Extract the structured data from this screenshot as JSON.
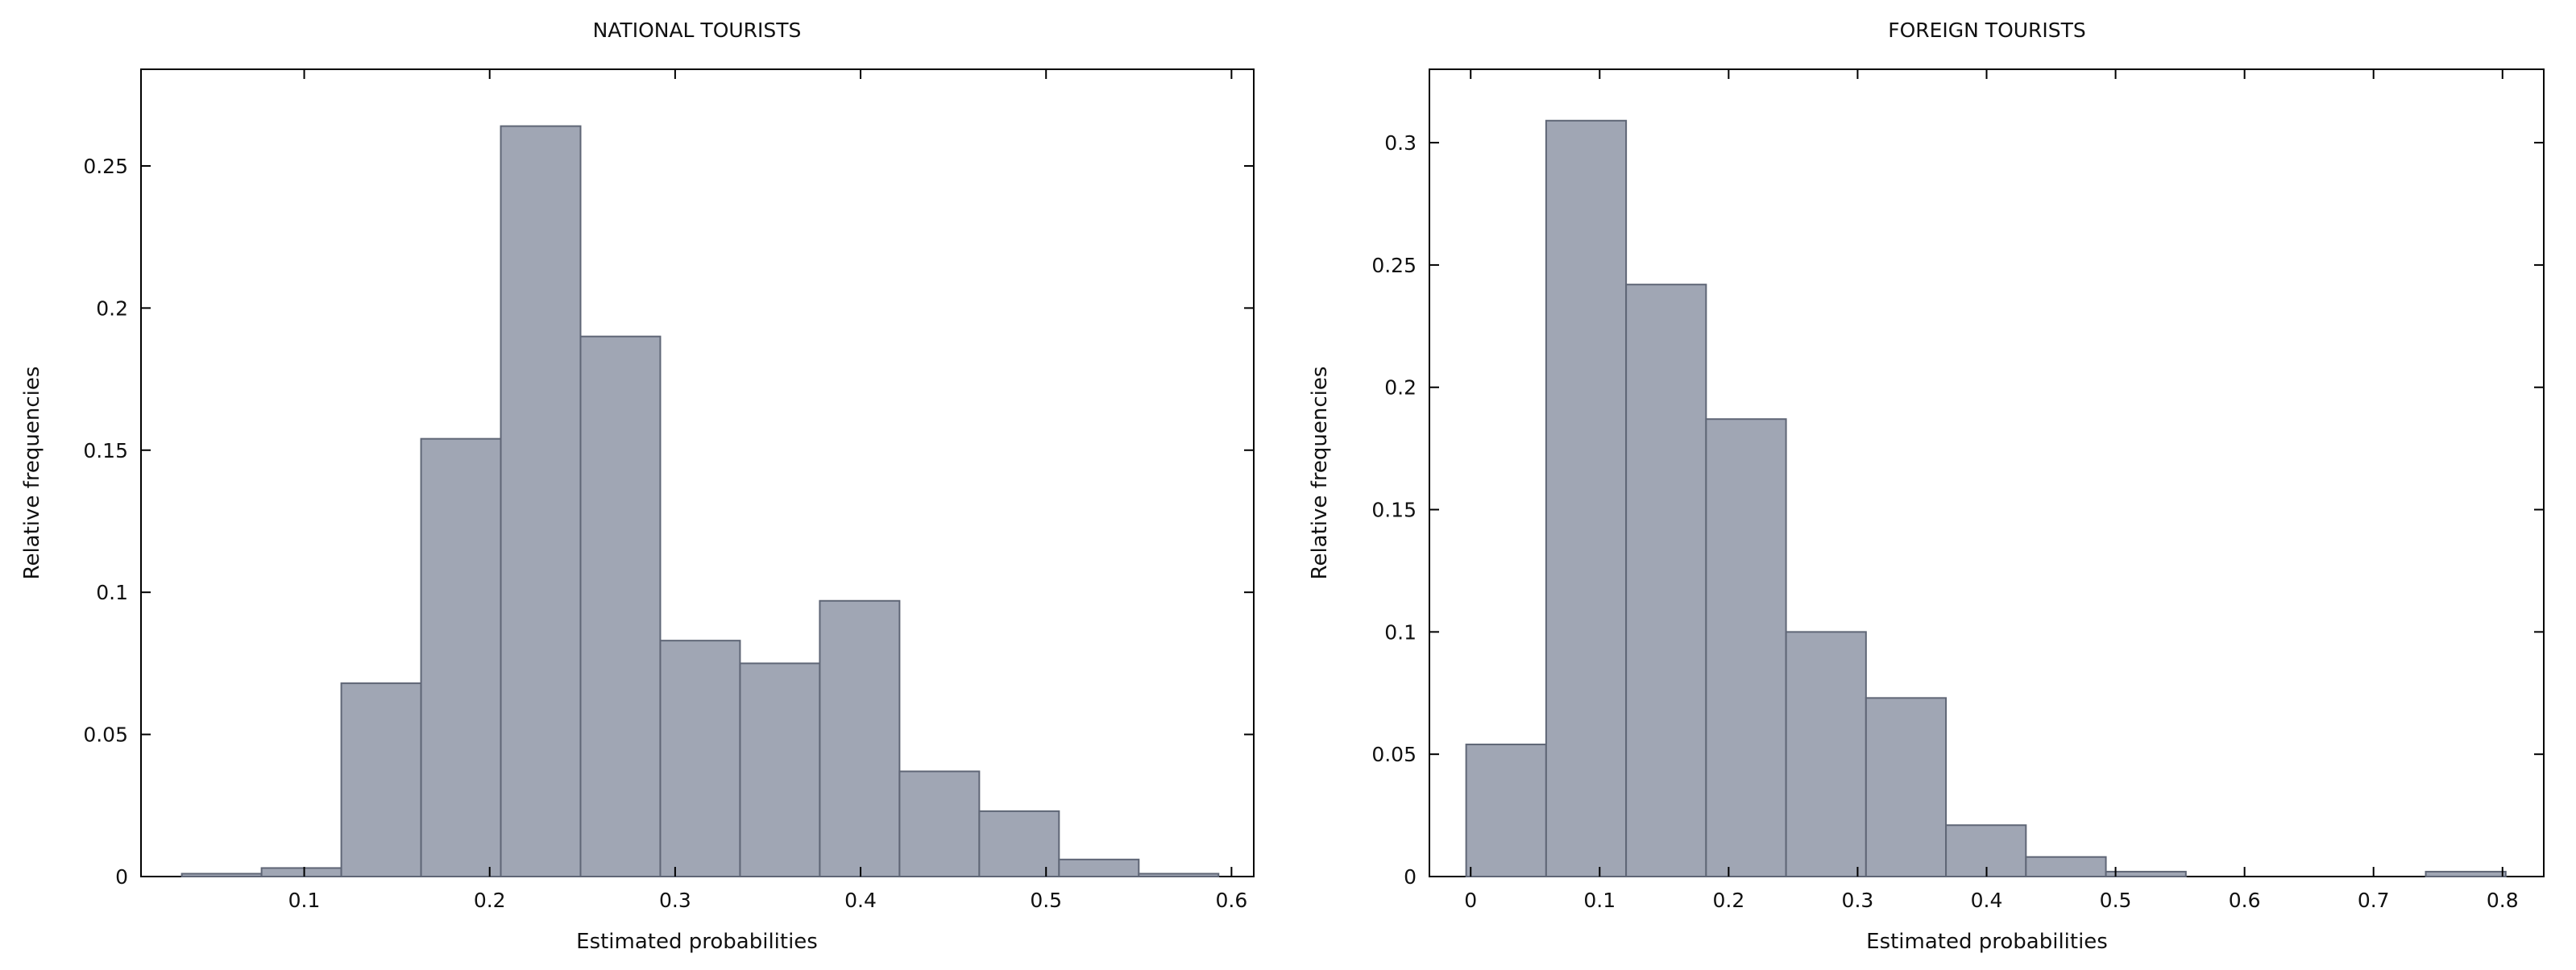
{
  "chart_data": [
    {
      "type": "bar",
      "title": "NATIONAL TOURISTS",
      "xlabel": "Estimated probabilities",
      "ylabel": "Relative frequencies",
      "xlim": [
        0.012,
        0.612
      ],
      "ylim": [
        0,
        0.284
      ],
      "xticks": [
        0.1,
        0.2,
        0.3,
        0.4,
        0.5,
        0.6
      ],
      "xtick_labels": [
        "0.1",
        "0.2",
        "0.3",
        "0.4",
        "0.5",
        "0.6"
      ],
      "yticks": [
        0,
        0.05,
        0.1,
        0.15,
        0.2,
        0.25
      ],
      "ytick_labels": [
        "0",
        "0.05",
        "0.1",
        "0.15",
        "0.2",
        "0.25"
      ],
      "bins": [
        {
          "start": 0.034,
          "end": 0.077,
          "value": 0.001
        },
        {
          "start": 0.077,
          "end": 0.12,
          "value": 0.003
        },
        {
          "start": 0.12,
          "end": 0.163,
          "value": 0.068
        },
        {
          "start": 0.163,
          "end": 0.206,
          "value": 0.154
        },
        {
          "start": 0.206,
          "end": 0.249,
          "value": 0.264
        },
        {
          "start": 0.249,
          "end": 0.292,
          "value": 0.19
        },
        {
          "start": 0.292,
          "end": 0.335,
          "value": 0.083
        },
        {
          "start": 0.335,
          "end": 0.378,
          "value": 0.075
        },
        {
          "start": 0.378,
          "end": 0.421,
          "value": 0.097
        },
        {
          "start": 0.421,
          "end": 0.464,
          "value": 0.037
        },
        {
          "start": 0.464,
          "end": 0.507,
          "value": 0.023
        },
        {
          "start": 0.507,
          "end": 0.55,
          "value": 0.006
        },
        {
          "start": 0.55,
          "end": 0.593,
          "value": 0.001
        }
      ],
      "grid": false,
      "legend": "none",
      "bar_fill": "#a0a6b4",
      "bar_edge": "#5f6676"
    },
    {
      "type": "bar",
      "title": "FOREIGN TOURISTS",
      "xlabel": "Estimated probabilities",
      "ylabel": "Relative frequencies",
      "xlim": [
        -0.032,
        0.832
      ],
      "ylim": [
        0,
        0.33
      ],
      "xticks": [
        0,
        0.1,
        0.2,
        0.3,
        0.4,
        0.5,
        0.6,
        0.7,
        0.8
      ],
      "xtick_labels": [
        "0",
        "0.1",
        "0.2",
        "0.3",
        "0.4",
        "0.5",
        "0.6",
        "0.7",
        "0.8"
      ],
      "yticks": [
        0,
        0.05,
        0.1,
        0.15,
        0.2,
        0.25,
        0.3
      ],
      "ytick_labels": [
        "0",
        "0.05",
        "0.1",
        "0.15",
        "0.2",
        "0.25",
        "0.3"
      ],
      "bins": [
        {
          "start": -0.0035,
          "end": 0.0585,
          "value": 0.054
        },
        {
          "start": 0.0585,
          "end": 0.1205,
          "value": 0.309
        },
        {
          "start": 0.1205,
          "end": 0.1825,
          "value": 0.242
        },
        {
          "start": 0.1825,
          "end": 0.2445,
          "value": 0.187
        },
        {
          "start": 0.2445,
          "end": 0.3065,
          "value": 0.1
        },
        {
          "start": 0.3065,
          "end": 0.3685,
          "value": 0.073
        },
        {
          "start": 0.3685,
          "end": 0.4305,
          "value": 0.021
        },
        {
          "start": 0.4305,
          "end": 0.4925,
          "value": 0.008
        },
        {
          "start": 0.4925,
          "end": 0.5545,
          "value": 0.002
        },
        {
          "start": 0.5545,
          "end": 0.6165,
          "value": 0
        },
        {
          "start": 0.6165,
          "end": 0.6785,
          "value": 0
        },
        {
          "start": 0.6785,
          "end": 0.7405,
          "value": 0
        },
        {
          "start": 0.7405,
          "end": 0.8025,
          "value": 0.002
        }
      ],
      "grid": false,
      "legend": "none",
      "bar_fill": "#a0a6b4",
      "bar_edge": "#5f6676"
    }
  ]
}
